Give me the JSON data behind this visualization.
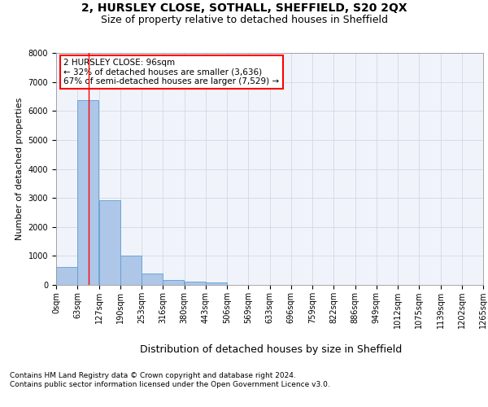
{
  "title1": "2, HURSLEY CLOSE, SOTHALL, SHEFFIELD, S20 2QX",
  "title2": "Size of property relative to detached houses in Sheffield",
  "xlabel": "Distribution of detached houses by size in Sheffield",
  "ylabel": "Number of detached properties",
  "bar_color": "#aec6e8",
  "bar_edge_color": "#5a9fd4",
  "grid_color": "#d0d8e8",
  "background_color": "#f0f4fa",
  "bin_edges": [
    0,
    63,
    127,
    190,
    253,
    316,
    380,
    443,
    506,
    569,
    633,
    696,
    759,
    822,
    886,
    949,
    1012,
    1075,
    1139,
    1202,
    1265
  ],
  "bin_labels": [
    "0sqm",
    "63sqm",
    "127sqm",
    "190sqm",
    "253sqm",
    "316sqm",
    "380sqm",
    "443sqm",
    "506sqm",
    "569sqm",
    "633sqm",
    "696sqm",
    "759sqm",
    "822sqm",
    "886sqm",
    "949sqm",
    "1012sqm",
    "1075sqm",
    "1139sqm",
    "1202sqm",
    "1265sqm"
  ],
  "bar_heights": [
    620,
    6380,
    2910,
    1000,
    380,
    180,
    115,
    90,
    0,
    0,
    0,
    0,
    0,
    0,
    0,
    0,
    0,
    0,
    0,
    0
  ],
  "ylim": [
    0,
    8000
  ],
  "yticks": [
    0,
    1000,
    2000,
    3000,
    4000,
    5000,
    6000,
    7000,
    8000
  ],
  "vline_x": 96,
  "annotation_text": "2 HURSLEY CLOSE: 96sqm\n← 32% of detached houses are smaller (3,636)\n67% of semi-detached houses are larger (7,529) →",
  "annotation_box_color": "white",
  "annotation_box_edge_color": "red",
  "vline_color": "red",
  "footer_text": "Contains HM Land Registry data © Crown copyright and database right 2024.\nContains public sector information licensed under the Open Government Licence v3.0.",
  "title1_fontsize": 10,
  "title2_fontsize": 9,
  "xlabel_fontsize": 9,
  "ylabel_fontsize": 8,
  "tick_fontsize": 7,
  "annotation_fontsize": 7.5,
  "footer_fontsize": 6.5
}
